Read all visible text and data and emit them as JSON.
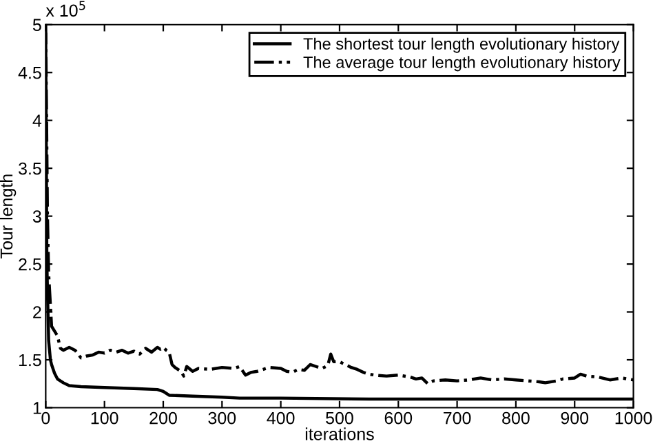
{
  "chart_data": {
    "type": "line",
    "xlabel": "iterations",
    "ylabel": "Tour length",
    "annotations": [
      "x 10$^{5}$"
    ],
    "xlim": [
      0,
      1000
    ],
    "xticks": [
      0,
      100,
      200,
      300,
      400,
      500,
      600,
      700,
      800,
      900,
      1000
    ],
    "ylim": [
      1,
      5
    ],
    "yticks": [
      1,
      1.5,
      2,
      2.5,
      3,
      3.5,
      4,
      4.5,
      5
    ],
    "grid": false,
    "legend": "top right",
    "series": [
      {
        "name": "The shortest tour length evolutionary history",
        "color": "#000000",
        "line_style": "solid",
        "x": [
          0,
          2,
          5,
          8,
          10,
          15,
          20,
          30,
          40,
          60,
          100,
          150,
          190,
          200,
          210,
          250,
          300,
          330,
          400,
          550,
          700,
          1000
        ],
        "values": [
          4.9,
          2.5,
          1.7,
          1.5,
          1.45,
          1.36,
          1.3,
          1.26,
          1.23,
          1.22,
          1.21,
          1.2,
          1.19,
          1.17,
          1.13,
          1.12,
          1.11,
          1.1,
          1.1,
          1.09,
          1.09,
          1.09
        ]
      },
      {
        "name": "The average tour length evolutionary history",
        "color": "#000000",
        "line_style": "dashdot",
        "x": [
          0,
          3,
          5,
          10,
          15,
          20,
          25,
          30,
          40,
          50,
          60,
          70,
          80,
          90,
          100,
          110,
          120,
          130,
          140,
          150,
          160,
          170,
          180,
          190,
          195,
          200,
          205,
          210,
          215,
          220,
          230,
          235,
          240,
          250,
          260,
          280,
          300,
          320,
          330,
          340,
          350,
          360,
          380,
          400,
          410,
          420,
          430,
          440,
          450,
          460,
          470,
          480,
          485,
          490,
          500,
          510,
          520,
          530,
          540,
          550,
          560,
          580,
          600,
          620,
          630,
          640,
          650,
          660,
          680,
          700,
          720,
          740,
          750,
          760,
          780,
          800,
          820,
          840,
          850,
          870,
          880,
          900,
          910,
          920,
          940,
          960,
          980,
          1000
        ],
        "values": [
          5.0,
          3.0,
          2.4,
          1.85,
          1.8,
          1.75,
          1.62,
          1.6,
          1.63,
          1.6,
          1.52,
          1.54,
          1.55,
          1.58,
          1.57,
          1.6,
          1.58,
          1.6,
          1.57,
          1.59,
          1.56,
          1.62,
          1.58,
          1.63,
          1.61,
          1.63,
          1.6,
          1.58,
          1.45,
          1.42,
          1.38,
          1.33,
          1.43,
          1.38,
          1.41,
          1.4,
          1.42,
          1.41,
          1.43,
          1.34,
          1.37,
          1.38,
          1.42,
          1.41,
          1.38,
          1.37,
          1.4,
          1.39,
          1.45,
          1.43,
          1.41,
          1.44,
          1.56,
          1.48,
          1.48,
          1.45,
          1.42,
          1.4,
          1.37,
          1.35,
          1.34,
          1.33,
          1.34,
          1.32,
          1.3,
          1.31,
          1.25,
          1.28,
          1.29,
          1.28,
          1.29,
          1.31,
          1.3,
          1.29,
          1.3,
          1.29,
          1.28,
          1.27,
          1.26,
          1.28,
          1.3,
          1.31,
          1.35,
          1.33,
          1.32,
          1.29,
          1.31,
          1.29
        ]
      }
    ]
  }
}
